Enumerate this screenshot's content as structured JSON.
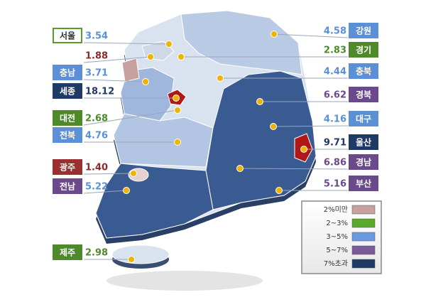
{
  "regions": [
    {
      "name": "서울",
      "value": "3.54",
      "box": "#ffffff",
      "boxText": "#333333",
      "border": "#5a9a2a",
      "valueColor": "#5b8fd6"
    },
    {
      "value": "1.88",
      "valueColor": "#8b2a2a"
    },
    {
      "name": "충남",
      "value": "3.71",
      "box": "#5b8fd6",
      "boxText": "#ffffff",
      "border": "#5b8fd6",
      "valueColor": "#5b8fd6"
    },
    {
      "name": "세종",
      "value": "18.12",
      "box": "#1f3a64",
      "boxText": "#ffffff",
      "border": "#1f3a64",
      "valueColor": "#1f3a64"
    },
    {
      "name": "대전",
      "value": "2.68",
      "box": "#4f8a2a",
      "boxText": "#ffffff",
      "border": "#4f8a2a",
      "valueColor": "#4f8a2a"
    },
    {
      "name": "전북",
      "value": "4.76",
      "box": "#5b8fd6",
      "boxText": "#ffffff",
      "border": "#5b8fd6",
      "valueColor": "#5b8fd6"
    },
    {
      "name": "광주",
      "value": "1.40",
      "box": "#9a3030",
      "boxText": "#ffffff",
      "border": "#9a3030",
      "valueColor": "#8b2a2a"
    },
    {
      "name": "전남",
      "value": "5.22",
      "box": "#6a4a8a",
      "boxText": "#ffffff",
      "border": "#6a4a8a",
      "valueColor": "#5b8fd6"
    },
    {
      "name": "제주",
      "value": "2.98",
      "box": "#4f8a2a",
      "boxText": "#ffffff",
      "border": "#4f8a2a",
      "valueColor": "#4f8a2a"
    },
    {
      "name": "강원",
      "value": "4.58",
      "box": "#5b8fd6",
      "boxText": "#ffffff",
      "border": "#5b8fd6",
      "valueColor": "#5b8fd6"
    },
    {
      "name": "경기",
      "value": "2.83",
      "box": "#4f8a2a",
      "boxText": "#ffffff",
      "border": "#4f8a2a",
      "valueColor": "#4f8a2a"
    },
    {
      "name": "충북",
      "value": "4.44",
      "box": "#5b8fd6",
      "boxText": "#ffffff",
      "border": "#5b8fd6",
      "valueColor": "#5b8fd6"
    },
    {
      "name": "경북",
      "value": "6.62",
      "box": "#6a4a8a",
      "boxText": "#ffffff",
      "border": "#6a4a8a",
      "valueColor": "#6a4a8a"
    },
    {
      "name": "대구",
      "value": "4.16",
      "box": "#5b8fd6",
      "boxText": "#ffffff",
      "border": "#5b8fd6",
      "valueColor": "#5b8fd6"
    },
    {
      "name": "울산",
      "value": "9.71",
      "box": "#1f3a64",
      "boxText": "#ffffff",
      "border": "#1f3a64",
      "valueColor": "#1f3a64"
    },
    {
      "name": "경남",
      "value": "6.86",
      "box": "#6a4a8a",
      "boxText": "#ffffff",
      "border": "#6a4a8a",
      "valueColor": "#6a4a8a"
    },
    {
      "name": "부산",
      "value": "5.16",
      "box": "#6a4a8a",
      "boxText": "#ffffff",
      "border": "#6a4a8a",
      "valueColor": "#6a4a8a"
    }
  ],
  "legend": {
    "items": [
      {
        "label": "2%미만",
        "color": "#c9a0a0"
      },
      {
        "label": "2~3%",
        "color": "#5aaa2a"
      },
      {
        "label": "3~5%",
        "color": "#6a9ae0"
      },
      {
        "label": "5~7%",
        "color": "#7a5a9a"
      },
      {
        "label": "7%초과",
        "color": "#1f3a64"
      }
    ]
  }
}
